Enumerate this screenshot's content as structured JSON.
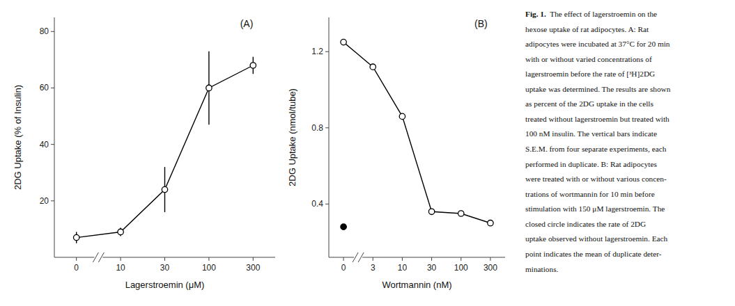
{
  "chart_data": [
    {
      "type": "line",
      "title": "(A)",
      "xlabel": "Lagerstroemin (μM)",
      "ylabel": "2DG Uptake (% of Insulin)",
      "categories": [
        "0",
        "10",
        "30",
        "100",
        "300"
      ],
      "series": [
        {
          "type": "line",
          "color": "#000000",
          "marker": "circle-open",
          "line_style": "solid",
          "values": [
            7,
            9,
            24,
            60,
            68
          ],
          "errors": [
            2.0,
            1.5,
            8.0,
            13.0,
            3.0
          ]
        }
      ],
      "ylim": [
        0,
        85
      ],
      "yticks": [
        20,
        40,
        60,
        80
      ]
    },
    {
      "type": "line",
      "title": "(B)",
      "xlabel": "Wortmannin (nM)",
      "ylabel": "2DG Uptake (nmol/tube)",
      "categories": [
        "0",
        "3",
        "10",
        "30",
        "100",
        "300"
      ],
      "series": [
        {
          "type": "line",
          "color": "#000000",
          "marker": "circle-open",
          "line_style": "solid",
          "values": [
            1.25,
            1.12,
            0.86,
            0.36,
            0.35,
            0.3
          ]
        },
        {
          "type": "scatter",
          "color": "#000000",
          "marker": "circle",
          "values": [
            0.28,
            null,
            null,
            null,
            null,
            null
          ]
        }
      ],
      "ylim": [
        0.12,
        1.38
      ],
      "yticks": [
        0.4,
        0.8,
        1.2
      ]
    }
  ],
  "caption": {
    "lead": "Fig. 1.",
    "lines": [
      "  The effect of lagerstroemin on the",
      "hexose uptake of rat adipocytes. A: Rat",
      "adipocytes were incubated at 37°C for 20 min",
      "with or without varied concentrations of",
      "lagerstroemin before the rate of [³H]2DG",
      "uptake was determined. The results are shown",
      "as percent of the 2DG uptake in the cells",
      "treated without lagerstroemin but treated with",
      "100 nM insulin. The vertical bars indicate",
      "S.E.M. from four separate experiments, each",
      "performed in duplicate. B: Rat adipocytes",
      "were treated with or without various concen-",
      "trations of wortmannin for 10 min before",
      "stimulation with 150 μM lagerstroemin. The",
      "closed circle indicates the rate of 2DG",
      "uptake observed without lagerstroemin. Each",
      "point indicates the mean of duplicate deter-",
      "minations."
    ]
  }
}
